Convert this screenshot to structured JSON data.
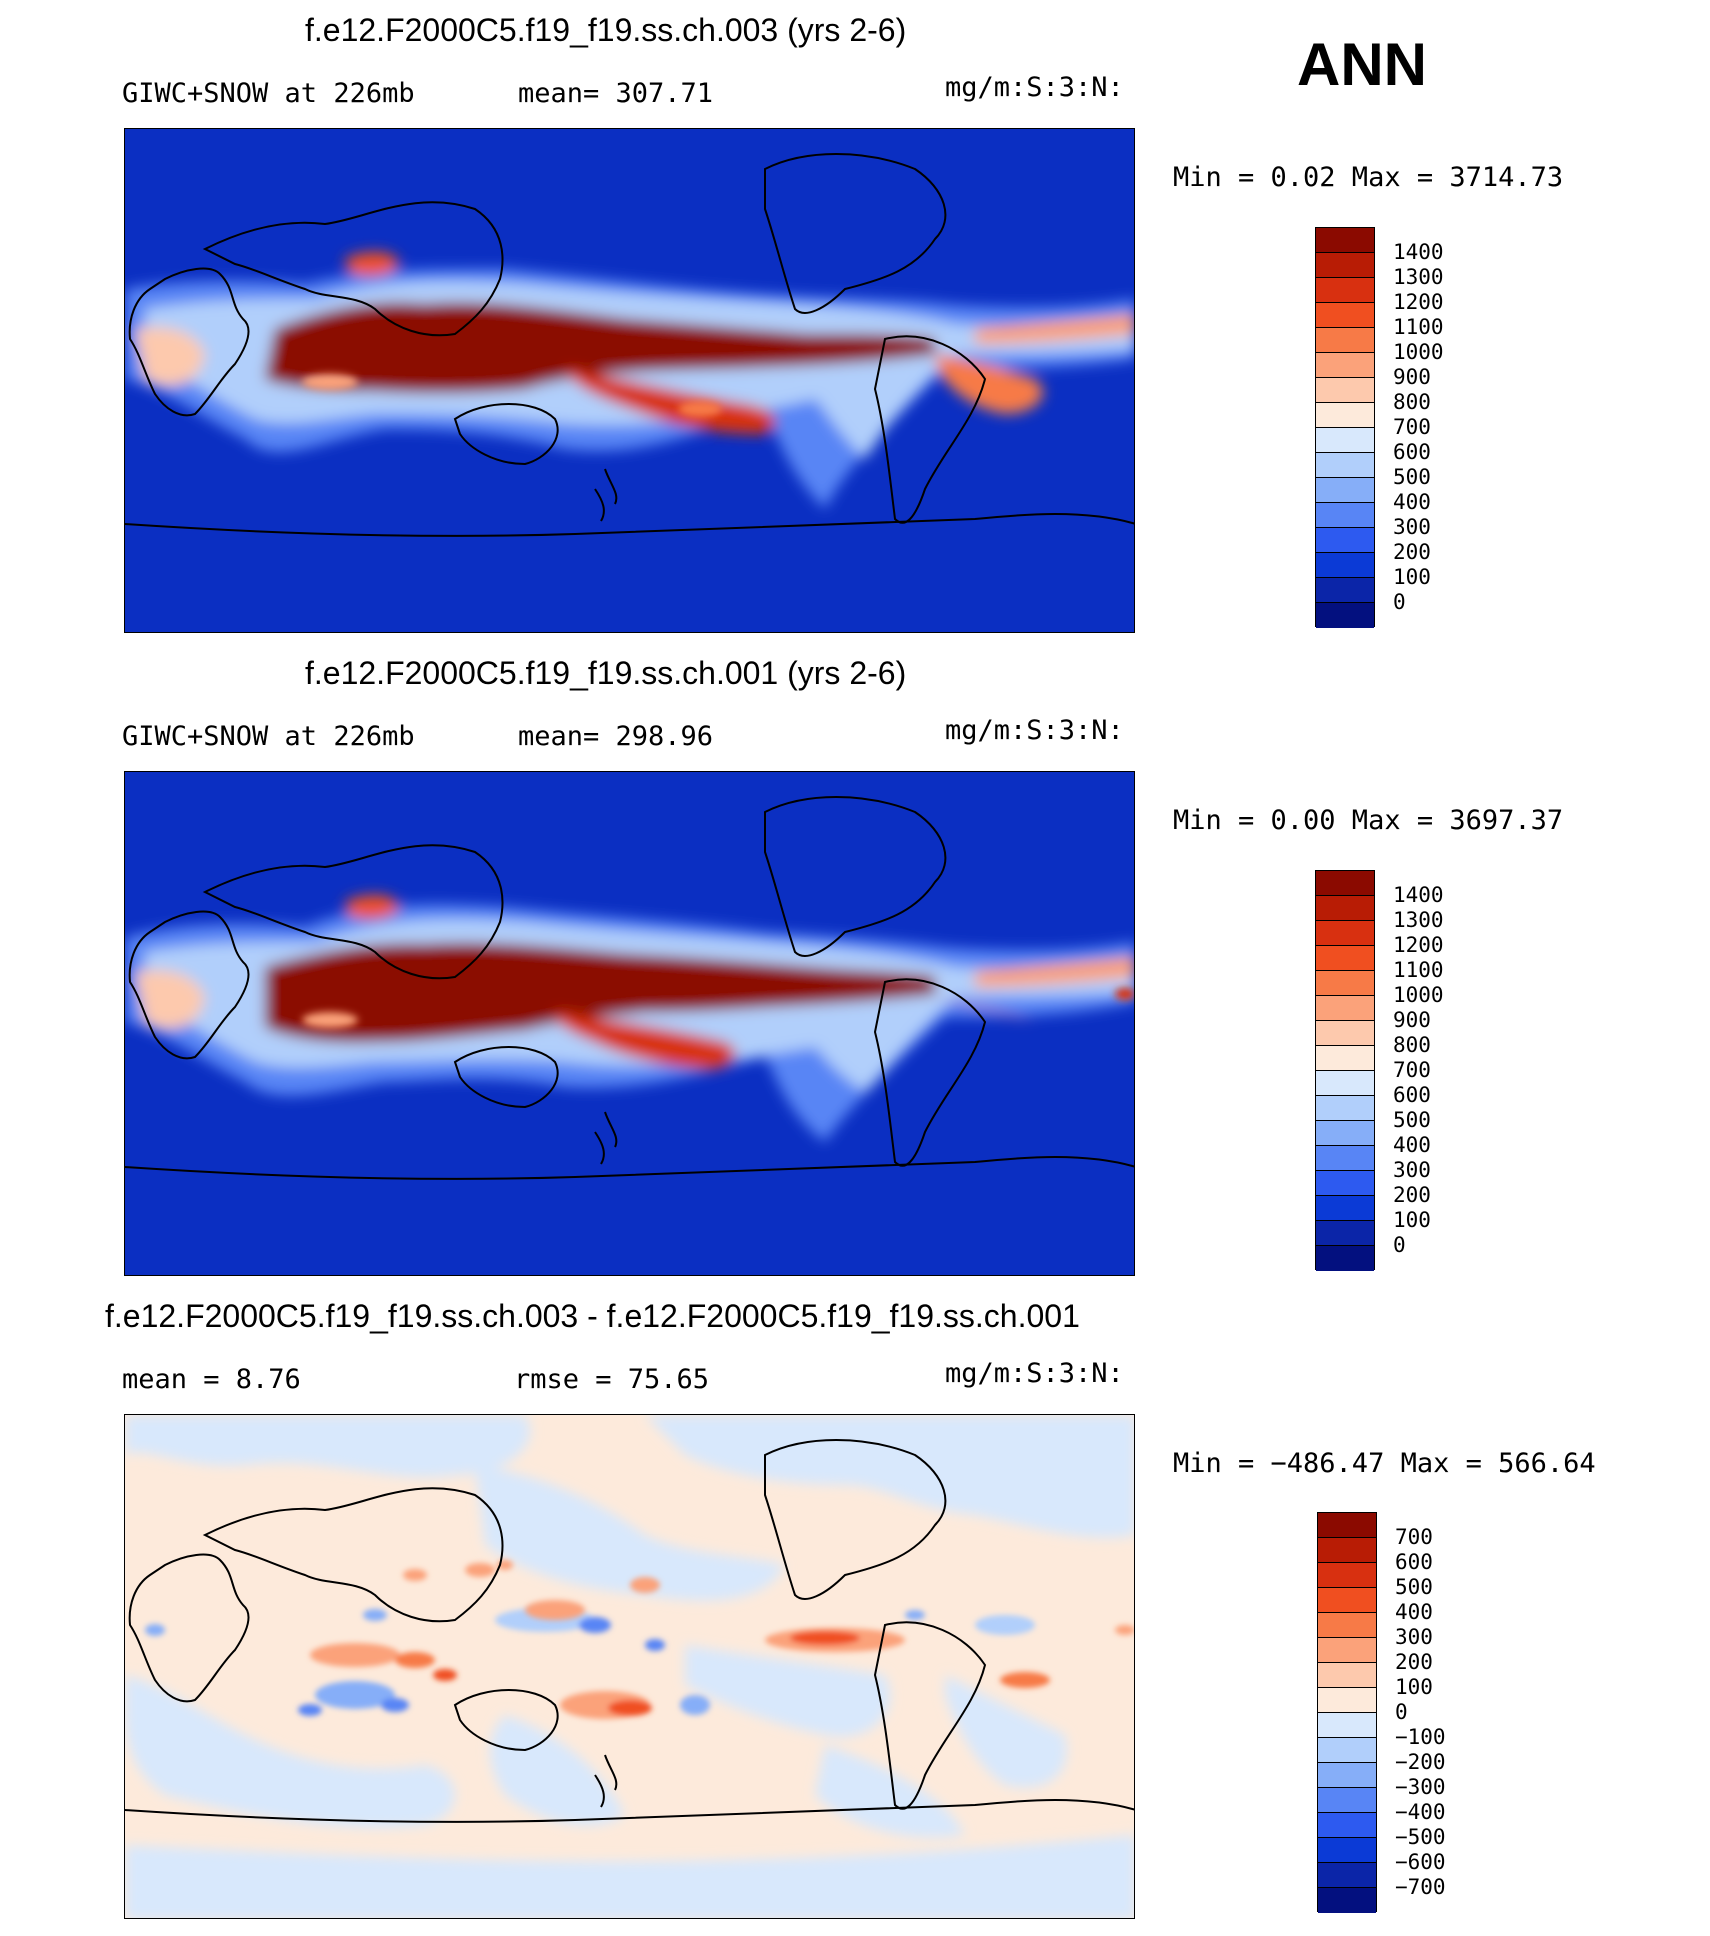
{
  "ann_label": "ANN",
  "colors": {
    "ocean_blue": "#0b2fc2",
    "coast": "#000000"
  },
  "panels": [
    {
      "title": "f.e12.F2000C5.f19_f19.ss.ch.003 (yrs 2-6)",
      "left_text": "GIWC+SNOW at 226mb",
      "middle_text": "mean= 307.71",
      "units": "mg/m:S:3:N:",
      "minmax": "Min =    0.02 Max = 3714.73",
      "colorbar": {
        "labels": [
          "1400",
          "1300",
          "1200",
          "1100",
          "1000",
          "900",
          "800",
          "700",
          "600",
          "500",
          "400",
          "300",
          "200",
          "100",
          "0"
        ],
        "colors": [
          "#8b0a00",
          "#b81c05",
          "#d83010",
          "#f04f20",
          "#f77a47",
          "#fba27a",
          "#fdc9ad",
          "#fdeadb",
          "#d8e8fc",
          "#b1cffb",
          "#86aef8",
          "#5885f5",
          "#2d5af0",
          "#0b3ad6",
          "#0b25a8",
          "#03107f"
        ]
      }
    },
    {
      "title": "f.e12.F2000C5.f19_f19.ss.ch.001 (yrs 2-6)",
      "left_text": "GIWC+SNOW at 226mb",
      "middle_text": "mean= 298.96",
      "units": "mg/m:S:3:N:",
      "minmax": "Min =    0.00 Max = 3697.37",
      "colorbar": {
        "labels": [
          "1400",
          "1300",
          "1200",
          "1100",
          "1000",
          "900",
          "800",
          "700",
          "600",
          "500",
          "400",
          "300",
          "200",
          "100",
          "0"
        ],
        "colors": [
          "#8b0a00",
          "#b81c05",
          "#d83010",
          "#f04f20",
          "#f77a47",
          "#fba27a",
          "#fdc9ad",
          "#fdeadb",
          "#d8e8fc",
          "#b1cffb",
          "#86aef8",
          "#5885f5",
          "#2d5af0",
          "#0b3ad6",
          "#0b25a8",
          "#03107f"
        ]
      }
    },
    {
      "title": "f.e12.F2000C5.f19_f19.ss.ch.003 - f.e12.F2000C5.f19_f19.ss.ch.001",
      "left_text": "mean =    8.76",
      "middle_text": "rmse =   75.65",
      "units": "mg/m:S:3:N:",
      "minmax": "Min = −486.47 Max = 566.64",
      "colorbar": {
        "labels": [
          "700",
          "600",
          "500",
          "400",
          "300",
          "200",
          "100",
          "0",
          "−100",
          "−200",
          "−300",
          "−400",
          "−500",
          "−600",
          "−700"
        ],
        "colors": [
          "#8b0a00",
          "#b81c05",
          "#d83010",
          "#f04f20",
          "#f77a47",
          "#fba27a",
          "#fdc9ad",
          "#fdeadb",
          "#d8e8fc",
          "#b1cffb",
          "#86aef8",
          "#5885f5",
          "#2d5af0",
          "#0b3ad6",
          "#0b25a8",
          "#03107f"
        ]
      }
    }
  ]
}
